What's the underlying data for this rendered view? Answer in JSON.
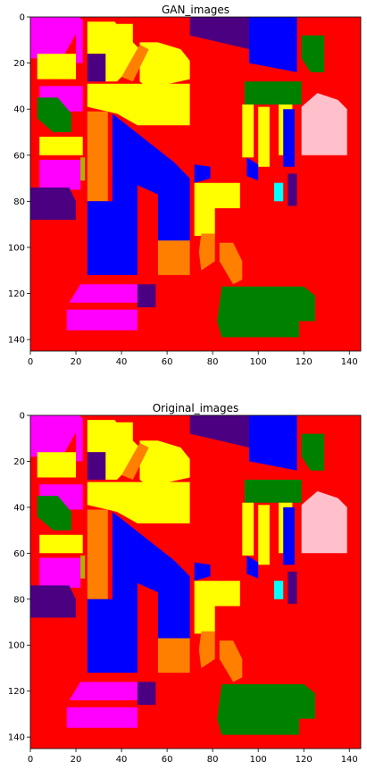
{
  "chart_data": [
    {
      "type": "heatmap",
      "title": "GAN_images",
      "xlim": [
        0,
        145
      ],
      "ylim": [
        145,
        0
      ],
      "xticks": [
        0,
        20,
        40,
        60,
        80,
        100,
        120,
        140
      ],
      "yticks": [
        0,
        20,
        40,
        60,
        80,
        100,
        120,
        140
      ],
      "background_color": "#ff0000",
      "class_colors": [
        "#ff0000",
        "#ffff00",
        "#0000ff",
        "#ff00ff",
        "#ff8000",
        "#008000",
        "#4b0082",
        "#ffc0cb",
        "#00ffff",
        "#b0b000"
      ]
    },
    {
      "type": "heatmap",
      "title": "Original_images",
      "xlim": [
        0,
        145
      ],
      "ylim": [
        145,
        0
      ],
      "xticks": [
        0,
        20,
        40,
        60,
        80,
        100,
        120,
        140
      ],
      "yticks": [
        0,
        20,
        40,
        60,
        80,
        100,
        120,
        140
      ],
      "background_color": "#ff0000",
      "class_colors": [
        "#ff0000",
        "#ffff00",
        "#0000ff",
        "#ff00ff",
        "#ff8000",
        "#008000",
        "#4b0082",
        "#ffc0cb",
        "#00ffff",
        "#b0b000"
      ]
    }
  ]
}
